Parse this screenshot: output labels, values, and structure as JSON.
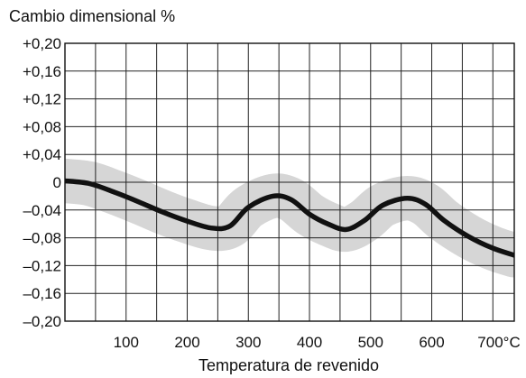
{
  "chart_data": {
    "type": "line",
    "title": "",
    "ylabel": "Cambio dimensional %",
    "xlabel": "Temperatura de revenido",
    "x_unit": "°C",
    "xlim": [
      0,
      735
    ],
    "ylim": [
      -0.2,
      0.2
    ],
    "x_ticks": [
      100,
      200,
      300,
      400,
      500,
      600,
      700
    ],
    "x_tick_labels": [
      "100",
      "200",
      "300",
      "400",
      "500",
      "600",
      "700°C"
    ],
    "y_ticks": [
      0.2,
      0.16,
      0.12,
      0.08,
      0.04,
      0,
      -0.04,
      -0.08,
      -0.12,
      -0.16,
      -0.2
    ],
    "y_tick_labels": [
      "+0,20",
      "+0,16",
      "+0,12",
      "+0,08",
      "+0,04",
      "0",
      "–0,04",
      "–0,08",
      "–0,12",
      "–0,16",
      "–0,20"
    ],
    "grid": true,
    "legend": "none",
    "series": [
      {
        "color": "#111111",
        "x": [
          0,
          40,
          80,
          120,
          160,
          200,
          240,
          270,
          300,
          340,
          370,
          400,
          430,
          460,
          490,
          520,
          560,
          590,
          620,
          660,
          700,
          735
        ],
        "y": [
          0.002,
          -0.002,
          -0.014,
          -0.028,
          -0.043,
          -0.056,
          -0.066,
          -0.063,
          -0.036,
          -0.02,
          -0.025,
          -0.046,
          -0.06,
          -0.068,
          -0.055,
          -0.033,
          -0.023,
          -0.032,
          -0.055,
          -0.078,
          -0.095,
          -0.105
        ]
      }
    ],
    "band": {
      "color": "#d6d6d6",
      "half_width": 0.032
    }
  }
}
